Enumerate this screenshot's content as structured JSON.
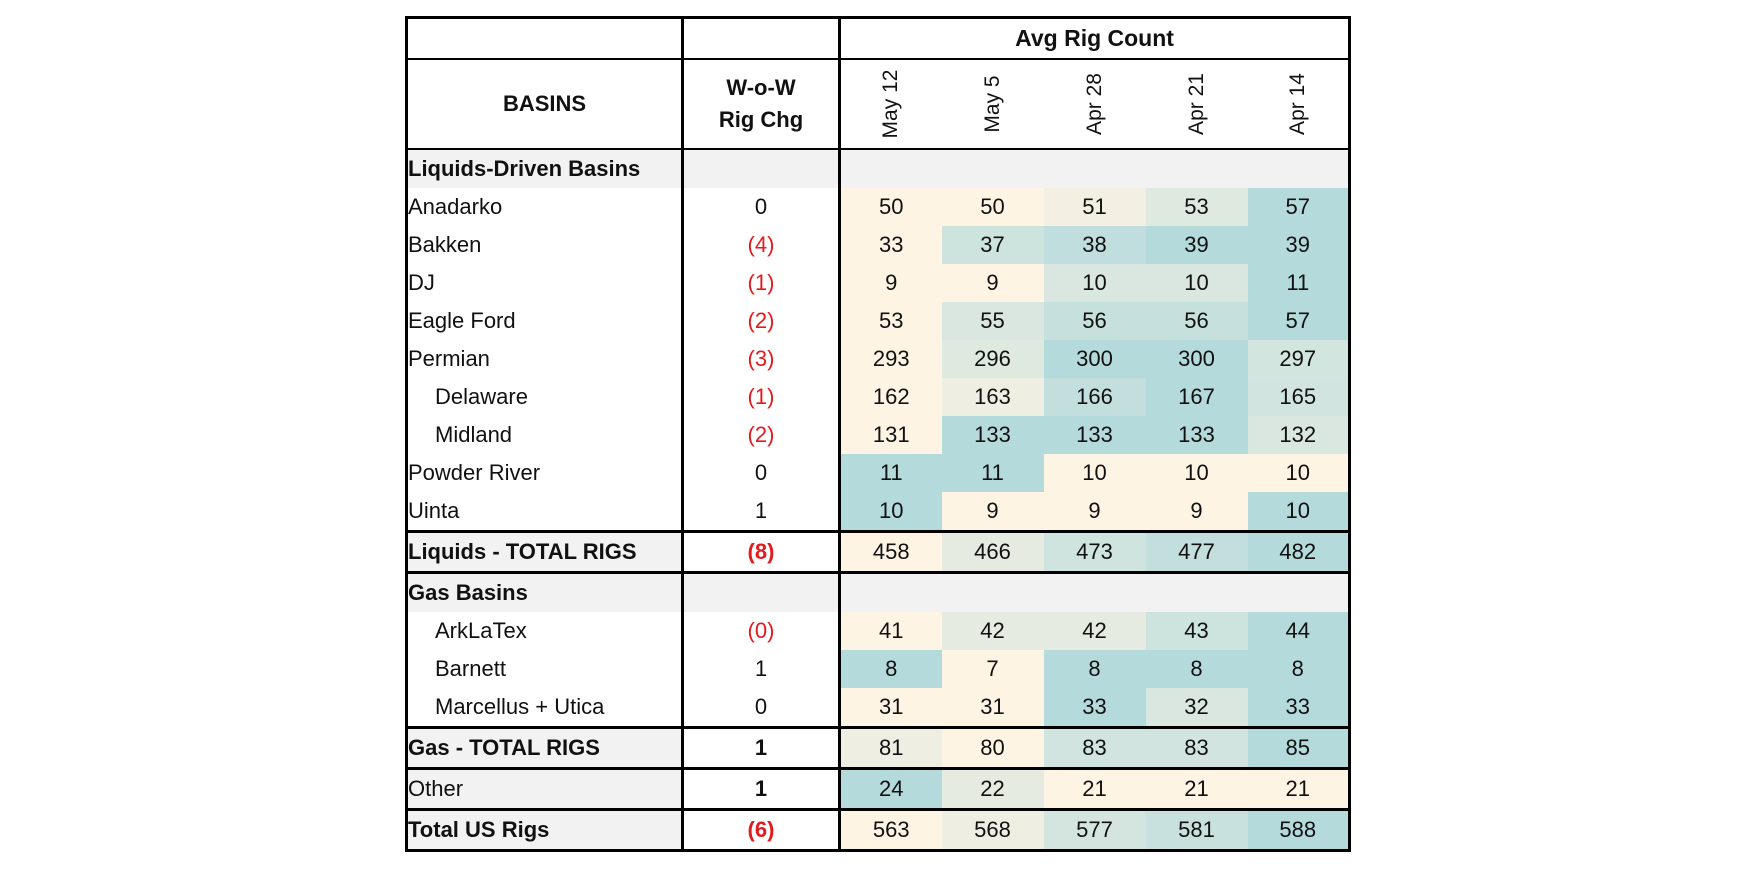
{
  "header": {
    "group_label": "Avg Rig Count",
    "basins_label": "BASINS",
    "change_label": "W-o-W Rig Chg",
    "weeks": [
      "May 12",
      "May 5",
      "Apr 28",
      "Apr 21",
      "Apr 14"
    ]
  },
  "colors": {
    "negative_text": "#e41a1c",
    "section_fill": "#f2f2f2",
    "heat_low": "#fdf4e4",
    "heat_high": "#b4dadb"
  },
  "rows": [
    {
      "type": "section",
      "name": "Liquids-Driven Basins"
    },
    {
      "type": "data",
      "name": "Anadarko",
      "indent": false,
      "chg": "0",
      "neg": false,
      "values": [
        50,
        50,
        51,
        53,
        57
      ]
    },
    {
      "type": "data",
      "name": "Bakken",
      "indent": false,
      "chg": "(4)",
      "neg": true,
      "values": [
        33,
        37,
        38,
        39,
        39
      ]
    },
    {
      "type": "data",
      "name": "DJ",
      "indent": false,
      "chg": "(1)",
      "neg": true,
      "values": [
        9,
        9,
        10,
        10,
        11
      ]
    },
    {
      "type": "data",
      "name": "Eagle Ford",
      "indent": false,
      "chg": "(2)",
      "neg": true,
      "values": [
        53,
        55,
        56,
        56,
        57
      ]
    },
    {
      "type": "data",
      "name": "Permian",
      "indent": false,
      "chg": "(3)",
      "neg": true,
      "values": [
        293,
        296,
        300,
        300,
        297
      ]
    },
    {
      "type": "data",
      "name": "Delaware",
      "indent": true,
      "chg": "(1)",
      "neg": true,
      "values": [
        162,
        163,
        166,
        167,
        165
      ]
    },
    {
      "type": "data",
      "name": "Midland",
      "indent": true,
      "chg": "(2)",
      "neg": true,
      "values": [
        131,
        133,
        133,
        133,
        132
      ]
    },
    {
      "type": "data",
      "name": "Powder River",
      "indent": false,
      "chg": "0",
      "neg": false,
      "values": [
        11,
        11,
        10,
        10,
        10
      ]
    },
    {
      "type": "data",
      "name": "Uinta",
      "indent": false,
      "chg": "1",
      "neg": false,
      "values": [
        10,
        9,
        9,
        9,
        10
      ]
    },
    {
      "type": "total",
      "name": "Liquids - TOTAL RIGS",
      "chg": "(8)",
      "neg": true,
      "values": [
        458,
        466,
        473,
        477,
        482
      ]
    },
    {
      "type": "section",
      "name": "Gas Basins"
    },
    {
      "type": "data",
      "name": "ArkLaTex",
      "indent": true,
      "chg": "(0)",
      "neg": true,
      "values": [
        41,
        42,
        42,
        43,
        44
      ]
    },
    {
      "type": "data",
      "name": "Barnett",
      "indent": true,
      "chg": "1",
      "neg": false,
      "values": [
        8,
        7,
        8,
        8,
        8
      ]
    },
    {
      "type": "data",
      "name": "Marcellus + Utica",
      "indent": true,
      "chg": "0",
      "neg": false,
      "values": [
        31,
        31,
        33,
        32,
        33
      ]
    },
    {
      "type": "total",
      "name": "Gas - TOTAL RIGS",
      "chg": "1",
      "neg": false,
      "values": [
        81,
        80,
        83,
        83,
        85
      ]
    },
    {
      "type": "total",
      "name": "Other",
      "chg": "1",
      "neg": false,
      "other": true,
      "values": [
        24,
        22,
        21,
        21,
        21
      ]
    },
    {
      "type": "total",
      "name": "Total US Rigs",
      "chg": "(6)",
      "neg": true,
      "values": [
        563,
        568,
        577,
        581,
        588
      ]
    }
  ]
}
